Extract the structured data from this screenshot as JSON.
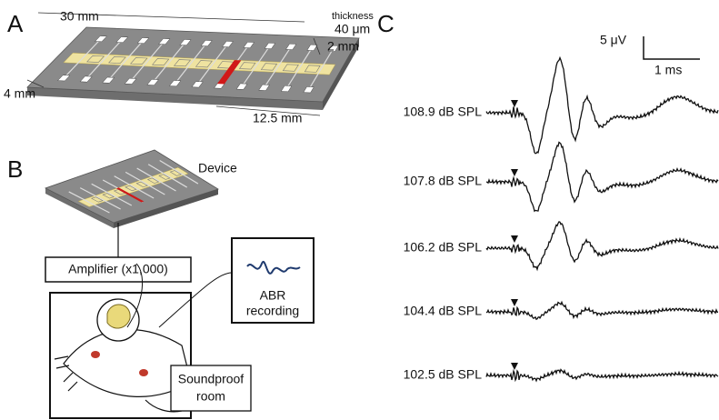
{
  "panels": {
    "a": {
      "label": "A",
      "length": "30 mm",
      "thickness_label": "thickness",
      "thickness": "40 μm",
      "width": "2 mm",
      "side": "4 mm",
      "segment": "12.5 mm"
    },
    "b": {
      "label": "B",
      "device": "Device",
      "amplifier": "Amplifier (x1,000)",
      "recording": [
        "ABR",
        "recording"
      ],
      "room": [
        "Soundproof",
        "room"
      ]
    },
    "c": {
      "label": "C",
      "scale_voltage": "5 μV",
      "scale_time": "1 ms",
      "traces": [
        "108.9 dB SPL",
        "107.8 dB SPL",
        "106.2 dB SPL",
        "104.4 dB SPL",
        "102.5 dB SPL"
      ]
    }
  }
}
